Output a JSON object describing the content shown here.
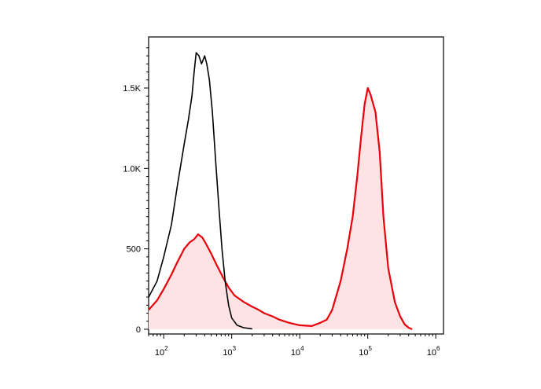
{
  "chart_data": {
    "type": "area",
    "title": "",
    "xlabel": "",
    "ylabel": "",
    "x_scale": "log",
    "xlim": [
      60,
      1300000
    ],
    "ylim": [
      0,
      1800
    ],
    "x_ticks": [
      {
        "value": 100,
        "base": "10",
        "exp": "2"
      },
      {
        "value": 1000,
        "base": "10",
        "exp": "3"
      },
      {
        "value": 10000,
        "base": "10",
        "exp": "4"
      },
      {
        "value": 100000,
        "base": "10",
        "exp": "5"
      },
      {
        "value": 1000000,
        "base": "10",
        "exp": "6"
      }
    ],
    "y_ticks": [
      {
        "value": 0,
        "label": "0"
      },
      {
        "value": 500,
        "label": "500"
      },
      {
        "value": 1000,
        "label": "1.0K"
      },
      {
        "value": 1500,
        "label": "1.5K"
      }
    ],
    "grid": false,
    "legend": "none",
    "series": [
      {
        "color": "#000000",
        "fill": "none",
        "points": [
          [
            60,
            200
          ],
          [
            80,
            300
          ],
          [
            100,
            450
          ],
          [
            130,
            650
          ],
          [
            160,
            900
          ],
          [
            200,
            1150
          ],
          [
            230,
            1300
          ],
          [
            260,
            1450
          ],
          [
            280,
            1600
          ],
          [
            300,
            1720
          ],
          [
            330,
            1700
          ],
          [
            360,
            1650
          ],
          [
            400,
            1700
          ],
          [
            430,
            1650
          ],
          [
            470,
            1550
          ],
          [
            520,
            1350
          ],
          [
            580,
            1050
          ],
          [
            650,
            750
          ],
          [
            720,
            500
          ],
          [
            800,
            300
          ],
          [
            900,
            150
          ],
          [
            1000,
            70
          ],
          [
            1200,
            25
          ],
          [
            1500,
            10
          ],
          [
            2000,
            3
          ]
        ]
      },
      {
        "color": "#e8000b",
        "fill": "#fde3e4",
        "points": [
          [
            60,
            120
          ],
          [
            80,
            180
          ],
          [
            100,
            250
          ],
          [
            130,
            340
          ],
          [
            160,
            420
          ],
          [
            200,
            500
          ],
          [
            240,
            540
          ],
          [
            280,
            560
          ],
          [
            320,
            590
          ],
          [
            370,
            570
          ],
          [
            420,
            530
          ],
          [
            500,
            470
          ],
          [
            600,
            400
          ],
          [
            750,
            320
          ],
          [
            900,
            260
          ],
          [
            1100,
            210
          ],
          [
            1500,
            170
          ],
          [
            2000,
            140
          ],
          [
            2500,
            120
          ],
          [
            3000,
            100
          ],
          [
            4000,
            80
          ],
          [
            5000,
            60
          ],
          [
            7000,
            40
          ],
          [
            10000,
            25
          ],
          [
            15000,
            20
          ],
          [
            20000,
            40
          ],
          [
            25000,
            60
          ],
          [
            30000,
            120
          ],
          [
            40000,
            300
          ],
          [
            50000,
            500
          ],
          [
            60000,
            700
          ],
          [
            70000,
            950
          ],
          [
            80000,
            1200
          ],
          [
            90000,
            1400
          ],
          [
            100000,
            1500
          ],
          [
            110000,
            1460
          ],
          [
            130000,
            1350
          ],
          [
            150000,
            1100
          ],
          [
            170000,
            700
          ],
          [
            200000,
            380
          ],
          [
            250000,
            170
          ],
          [
            300000,
            80
          ],
          [
            350000,
            30
          ],
          [
            400000,
            10
          ],
          [
            450000,
            0
          ]
        ]
      }
    ]
  }
}
